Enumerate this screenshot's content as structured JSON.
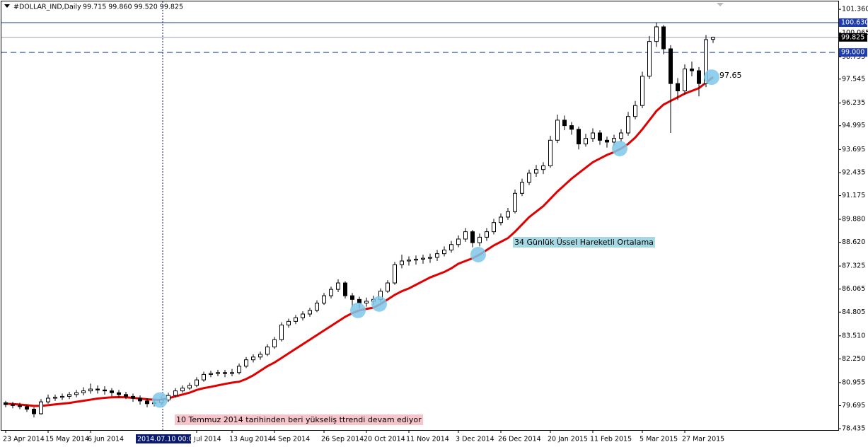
{
  "header": {
    "symbol": "#DOLLAR_IND,Daily",
    "ohlc": "99.715 99.860 99.520 99.825"
  },
  "chart_data": {
    "type": "candlestick",
    "ylim": [
      78.36,
      101.79
    ],
    "yticks": [
      {
        "value": 101.36,
        "label": "101.360"
      },
      100.065,
      98.755,
      97.545,
      96.235,
      94.995,
      93.695,
      92.435,
      91.175,
      {
        "value": 89.88,
        "label": "89.880"
      },
      {
        "value": 88.62,
        "label": "88.620"
      },
      87.325,
      86.065,
      84.805,
      {
        "value": 83.51,
        "label": "83.510"
      },
      {
        "value": 82.25,
        "label": "82.250"
      },
      80.955,
      79.695,
      78.435
    ],
    "categories": [
      "23 Apr 2014",
      null,
      null,
      null,
      null,
      null,
      "15 May 2014",
      null,
      null,
      null,
      null,
      null,
      "6 Jun 2014",
      null,
      null,
      null,
      null,
      null,
      null,
      null,
      null,
      null,
      null,
      null,
      null,
      null,
      null,
      "Jul 2014",
      null,
      null,
      null,
      null,
      "13 Aug 2014",
      null,
      null,
      null,
      null,
      null,
      "4 Sep 2014",
      null,
      null,
      null,
      null,
      null,
      null,
      "26 Sep 2014",
      null,
      null,
      null,
      null,
      null,
      "20 Oct 2014",
      null,
      null,
      null,
      null,
      null,
      "11 Nov 2014",
      null,
      null,
      null,
      null,
      null,
      null,
      "3 Dec 2014",
      null,
      null,
      null,
      null,
      null,
      "26 Dec 2014",
      null,
      null,
      null,
      null,
      null,
      null,
      "20 Jan 2015",
      null,
      null,
      null,
      null,
      null,
      "11 Feb 2015",
      null,
      null,
      null,
      null,
      null,
      null,
      "5 Mar 2015",
      null,
      null,
      null,
      null,
      null,
      "27 Mar 2015",
      null,
      null,
      null,
      null
    ],
    "ohlc": [
      [
        79.85,
        79.95,
        79.6,
        79.75
      ],
      [
        79.75,
        79.9,
        79.55,
        79.7
      ],
      [
        79.7,
        79.85,
        79.5,
        79.64
      ],
      [
        79.64,
        79.75,
        79.35,
        79.5
      ],
      [
        79.5,
        79.6,
        79.05,
        79.25
      ],
      [
        79.25,
        80.05,
        79.2,
        79.9
      ],
      [
        79.9,
        80.3,
        79.8,
        80.1
      ],
      [
        80.1,
        80.3,
        79.95,
        80.15
      ],
      [
        80.15,
        80.35,
        80.0,
        80.2
      ],
      [
        80.2,
        80.45,
        80.05,
        80.3
      ],
      [
        80.3,
        80.55,
        80.15,
        80.4
      ],
      [
        80.4,
        80.7,
        80.25,
        80.5
      ],
      [
        80.5,
        80.9,
        80.35,
        80.6
      ],
      [
        80.6,
        80.8,
        80.35,
        80.55
      ],
      [
        80.55,
        80.75,
        80.3,
        80.5
      ],
      [
        80.5,
        80.65,
        80.2,
        80.4
      ],
      [
        80.4,
        80.55,
        80.15,
        80.3
      ],
      [
        80.3,
        80.45,
        80.05,
        80.2
      ],
      [
        80.2,
        80.35,
        79.9,
        80.1
      ],
      [
        80.1,
        80.25,
        79.75,
        79.95
      ],
      [
        79.95,
        80.1,
        79.6,
        79.8
      ],
      [
        79.8,
        80.05,
        79.65,
        79.85
      ],
      [
        79.85,
        80.2,
        79.7,
        80.0
      ],
      [
        80.0,
        80.4,
        79.9,
        80.25
      ],
      [
        80.25,
        80.65,
        80.15,
        80.5
      ],
      [
        80.5,
        80.8,
        80.4,
        80.65
      ],
      [
        80.65,
        80.95,
        80.55,
        80.8
      ],
      [
        80.8,
        81.25,
        80.7,
        81.1
      ],
      [
        81.1,
        81.55,
        81.0,
        81.4
      ],
      [
        81.4,
        81.6,
        81.25,
        81.45
      ],
      [
        81.45,
        81.65,
        81.3,
        81.5
      ],
      [
        81.5,
        81.65,
        81.25,
        81.45
      ],
      [
        81.45,
        81.7,
        81.3,
        81.5
      ],
      [
        81.5,
        82.0,
        81.4,
        81.85
      ],
      [
        81.85,
        82.35,
        81.75,
        82.2
      ],
      [
        82.2,
        82.5,
        82.05,
        82.35
      ],
      [
        82.35,
        82.65,
        82.2,
        82.5
      ],
      [
        82.5,
        83.05,
        82.4,
        82.9
      ],
      [
        82.9,
        83.45,
        82.8,
        83.3
      ],
      [
        83.3,
        84.25,
        83.2,
        84.1
      ],
      [
        84.1,
        84.45,
        83.95,
        84.3
      ],
      [
        84.3,
        84.65,
        84.15,
        84.5
      ],
      [
        84.5,
        84.85,
        84.35,
        84.7
      ],
      [
        84.7,
        85.05,
        84.55,
        84.9
      ],
      [
        84.9,
        85.45,
        84.8,
        85.3
      ],
      [
        85.3,
        85.85,
        85.2,
        85.7
      ],
      [
        85.7,
        86.2,
        85.55,
        86.05
      ],
      [
        86.05,
        86.6,
        85.9,
        86.4
      ],
      [
        86.4,
        86.5,
        85.55,
        85.7
      ],
      [
        85.7,
        85.85,
        85.1,
        85.5
      ],
      [
        85.5,
        85.65,
        85.0,
        85.3
      ],
      [
        85.3,
        85.6,
        85.1,
        85.4
      ],
      [
        85.4,
        85.7,
        85.2,
        85.5
      ],
      [
        85.5,
        86.1,
        85.35,
        85.95
      ],
      [
        85.95,
        86.55,
        85.85,
        86.4
      ],
      [
        86.4,
        87.55,
        86.3,
        87.4
      ],
      [
        87.4,
        87.95,
        87.2,
        87.6
      ],
      [
        87.6,
        87.85,
        87.35,
        87.65
      ],
      [
        87.65,
        87.9,
        87.4,
        87.7
      ],
      [
        87.7,
        87.95,
        87.45,
        87.75
      ],
      [
        87.75,
        88.0,
        87.5,
        87.8
      ],
      [
        87.8,
        88.2,
        87.6,
        88.0
      ],
      [
        88.0,
        88.4,
        87.85,
        88.2
      ],
      [
        88.2,
        88.7,
        88.05,
        88.5
      ],
      [
        88.5,
        89.0,
        88.35,
        88.8
      ],
      [
        88.8,
        89.4,
        88.65,
        89.2
      ],
      [
        89.2,
        89.3,
        88.35,
        88.6
      ],
      [
        88.6,
        89.1,
        88.4,
        88.9
      ],
      [
        88.9,
        89.4,
        88.7,
        89.2
      ],
      [
        89.2,
        89.9,
        89.05,
        89.7
      ],
      [
        89.7,
        90.2,
        89.55,
        90.0
      ],
      [
        90.0,
        90.5,
        89.85,
        90.3
      ],
      [
        90.3,
        91.5,
        90.2,
        91.3
      ],
      [
        91.3,
        92.1,
        91.15,
        91.9
      ],
      [
        91.9,
        92.6,
        91.75,
        92.4
      ],
      [
        92.4,
        92.85,
        92.2,
        92.6
      ],
      [
        92.6,
        93.0,
        92.35,
        92.8
      ],
      [
        92.8,
        94.45,
        92.7,
        94.2
      ],
      [
        94.2,
        95.6,
        94.05,
        95.3
      ],
      [
        95.3,
        95.55,
        94.75,
        95.0
      ],
      [
        95.0,
        95.2,
        94.5,
        94.8
      ],
      [
        94.8,
        94.95,
        93.7,
        94.0
      ],
      [
        94.0,
        94.55,
        93.85,
        94.3
      ],
      [
        94.3,
        94.85,
        94.1,
        94.6
      ],
      [
        94.6,
        94.75,
        93.95,
        94.2
      ],
      [
        94.2,
        94.4,
        93.8,
        94.1
      ],
      [
        94.1,
        94.5,
        93.9,
        94.3
      ],
      [
        94.3,
        94.8,
        94.1,
        94.6
      ],
      [
        94.6,
        95.75,
        94.45,
        95.5
      ],
      [
        95.5,
        96.35,
        95.35,
        96.1
      ],
      [
        96.1,
        97.95,
        95.95,
        97.7
      ],
      [
        97.7,
        99.9,
        97.55,
        99.6
      ],
      [
        99.6,
        100.63,
        99.3,
        100.4
      ],
      [
        100.4,
        100.5,
        98.9,
        99.2
      ],
      [
        99.2,
        99.4,
        94.6,
        97.3
      ],
      [
        97.3,
        97.6,
        96.4,
        96.9
      ],
      [
        96.9,
        98.35,
        96.7,
        98.1
      ],
      [
        98.1,
        98.5,
        97.7,
        98.0
      ],
      [
        98.0,
        98.2,
        96.6,
        97.3
      ],
      [
        97.3,
        99.95,
        97.1,
        99.7
      ],
      [
        99.715,
        99.86,
        99.52,
        99.825
      ]
    ],
    "ema": {
      "color": "#e00000",
      "values": [
        79.8,
        79.78,
        79.75,
        79.72,
        79.68,
        79.68,
        79.72,
        79.76,
        79.8,
        79.84,
        79.9,
        79.96,
        80.02,
        80.08,
        80.12,
        80.15,
        80.16,
        80.15,
        80.12,
        80.08,
        80.04,
        80.02,
        80.0,
        80.1,
        80.2,
        80.3,
        80.4,
        80.55,
        80.65,
        80.72,
        80.8,
        80.88,
        80.95,
        81.0,
        81.15,
        81.35,
        81.6,
        81.85,
        82.05,
        82.3,
        82.55,
        82.8,
        83.05,
        83.3,
        83.55,
        83.8,
        84.05,
        84.3,
        84.55,
        84.75,
        84.9,
        84.98,
        85.05,
        85.25,
        85.5,
        85.75,
        85.95,
        86.1,
        86.3,
        86.5,
        86.7,
        86.85,
        87.0,
        87.2,
        87.45,
        87.6,
        87.75,
        87.95,
        88.2,
        88.45,
        88.65,
        88.85,
        89.2,
        89.6,
        90.0,
        90.3,
        90.6,
        91.0,
        91.4,
        91.75,
        92.1,
        92.4,
        92.7,
        93.0,
        93.2,
        93.4,
        93.55,
        93.75,
        94.0,
        94.35,
        94.8,
        95.3,
        95.8,
        96.15,
        96.35,
        96.55,
        96.75,
        96.9,
        97.05,
        97.35,
        97.65
      ]
    },
    "ema_end_label": 97.65,
    "hlines": [
      {
        "value": 100.63,
        "label": "100.630",
        "color": "#1e3ca8",
        "dashed": false
      },
      {
        "value": 99.825,
        "label": "99.825",
        "color": "#000000",
        "dashed": false
      },
      {
        "value": 99.0,
        "label": "99.000",
        "color": "#1e3ca8",
        "dashed": true
      }
    ],
    "crosshair_label": "2014.07.10 00:00",
    "annotations": [
      "34 Günlük Üssel Hareketli Ortalama",
      "10 Temmuz 2014 tarihinden beri yükseliş ttrendi devam ediyor"
    ]
  }
}
